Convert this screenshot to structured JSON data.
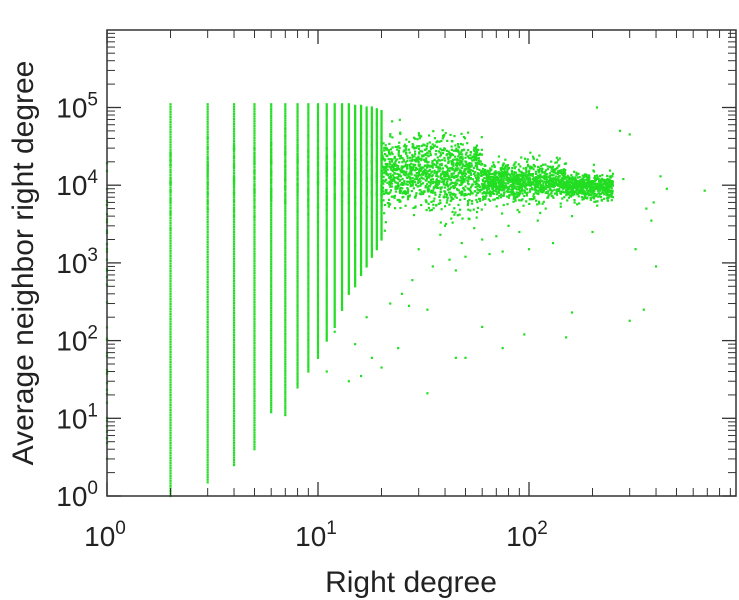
{
  "chart_data": {
    "type": "scatter",
    "title": "",
    "xlabel": "Right degree",
    "ylabel": "Average neighbor right degree",
    "x_scale": "log",
    "y_scale": "log",
    "xlim": [
      1,
      800
    ],
    "ylim": [
      1,
      1000000
    ],
    "grid": false,
    "legend": "none",
    "marker_color": "#22dd22",
    "x_ticks": [
      {
        "base": "10",
        "exp": "0"
      },
      {
        "base": "10",
        "exp": "1"
      },
      {
        "base": "10",
        "exp": "2"
      }
    ],
    "y_ticks": [
      {
        "base": "10",
        "exp": "0"
      },
      {
        "base": "10",
        "exp": "1"
      },
      {
        "base": "10",
        "exp": "2"
      },
      {
        "base": "10",
        "exp": "3"
      },
      {
        "base": "10",
        "exp": "4"
      },
      {
        "base": "10",
        "exp": "5"
      }
    ],
    "columns": [
      {
        "x": 2,
        "ymin": 1,
        "ymax": 110000
      },
      {
        "x": 3,
        "ymin": 1.5,
        "ymax": 110000
      },
      {
        "x": 4,
        "ymin": 2.5,
        "ymax": 110000
      },
      {
        "x": 5,
        "ymin": 4,
        "ymax": 110000
      },
      {
        "x": 6,
        "ymin": 12,
        "ymax": 110000
      },
      {
        "x": 7,
        "ymin": 11,
        "ymax": 110000
      },
      {
        "x": 8,
        "ymin": 25,
        "ymax": 110000
      },
      {
        "x": 9,
        "ymin": 40,
        "ymax": 110000
      },
      {
        "x": 10,
        "ymin": 60,
        "ymax": 110000
      },
      {
        "x": 11,
        "ymin": 100,
        "ymax": 110000
      },
      {
        "x": 12,
        "ymin": 150,
        "ymax": 110000
      },
      {
        "x": 13,
        "ymin": 250,
        "ymax": 110000
      },
      {
        "x": 14,
        "ymin": 400,
        "ymax": 110000
      },
      {
        "x": 15,
        "ymin": 500,
        "ymax": 105000
      },
      {
        "x": 16,
        "ymin": 700,
        "ymax": 105000
      },
      {
        "x": 17,
        "ymin": 900,
        "ymax": 100000
      },
      {
        "x": 18,
        "ymin": 1200,
        "ymax": 100000
      },
      {
        "x": 19,
        "ymin": 1500,
        "ymax": 95000
      },
      {
        "x": 20,
        "ymin": 2000,
        "ymax": 90000
      }
    ],
    "cloud": [
      {
        "x_from": 20,
        "x_to": 60,
        "y_center": 14000,
        "spread_decades": 0.22
      },
      {
        "x_from": 60,
        "x_to": 150,
        "y_center": 11000,
        "spread_decades": 0.12
      },
      {
        "x_from": 150,
        "x_to": 250,
        "y_center": 9500,
        "spread_decades": 0.08
      }
    ],
    "points": [
      [
        210,
        100000
      ],
      [
        300,
        45000
      ],
      [
        270,
        50000
      ],
      [
        680,
        8500
      ],
      [
        420,
        13000
      ],
      [
        450,
        9000
      ],
      [
        390,
        6000
      ],
      [
        360,
        5000
      ],
      [
        280,
        12000
      ],
      [
        250,
        7000
      ],
      [
        200,
        2500
      ],
      [
        160,
        4000
      ],
      [
        130,
        1800
      ],
      [
        100,
        1500
      ],
      [
        90,
        2500
      ],
      [
        75,
        1400
      ],
      [
        60,
        2000
      ],
      [
        50,
        1200
      ],
      [
        45,
        800
      ],
      [
        40,
        3000
      ],
      [
        35,
        900
      ],
      [
        30,
        1500
      ],
      [
        28,
        600
      ],
      [
        25,
        400
      ],
      [
        22,
        300
      ],
      [
        33,
        250
      ],
      [
        27,
        280
      ],
      [
        60,
        150
      ],
      [
        75,
        80
      ],
      [
        95,
        120
      ],
      [
        150,
        110
      ],
      [
        160,
        230
      ],
      [
        45,
        60
      ],
      [
        50,
        60
      ],
      [
        24,
        80
      ],
      [
        20,
        45
      ],
      [
        18,
        60
      ],
      [
        16,
        35
      ],
      [
        14,
        30
      ],
      [
        33,
        21
      ],
      [
        12,
        130
      ],
      [
        11,
        40
      ],
      [
        13,
        250
      ],
      [
        15,
        90
      ],
      [
        17,
        200
      ],
      [
        300,
        180
      ],
      [
        350,
        250
      ],
      [
        400,
        900
      ],
      [
        320,
        1500
      ],
      [
        380,
        3500
      ],
      [
        110,
        3500
      ],
      [
        80,
        3000
      ],
      [
        70,
        2200
      ],
      [
        55,
        2800
      ],
      [
        65,
        1300
      ],
      [
        48,
        1800
      ],
      [
        38,
        2300
      ],
      [
        42,
        1100
      ],
      [
        90,
        4500
      ],
      [
        120,
        5000
      ]
    ]
  }
}
